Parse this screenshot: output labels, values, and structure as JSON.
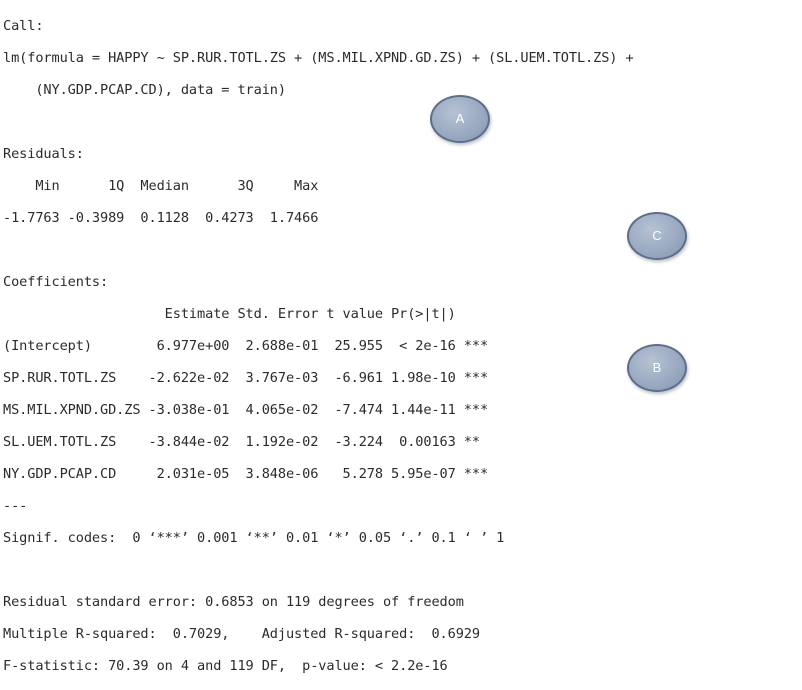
{
  "call_block": {
    "header": "Call:",
    "formula_line1": "lm(formula = HAPPY ~ SP.RUR.TOTL.ZS + (MS.MIL.XPND.GD.ZS) + (SL.UEM.TOTL.ZS) +",
    "formula_line2": "    (NY.GDP.PCAP.CD), data = train)"
  },
  "residuals": {
    "header": "Residuals:",
    "labels": "    Min      1Q  Median      3Q     Max ",
    "values": "-1.7763 -0.3989  0.1128  0.4273  1.7466 "
  },
  "coefficients": {
    "header": "Coefficients:",
    "column_header": "                    Estimate Std. Error t value Pr(>|t|)    ",
    "rows": [
      "(Intercept)        6.977e+00  2.688e-01  25.955  < 2e-16 ***",
      "SP.RUR.TOTL.ZS    -2.622e-02  3.767e-03  -6.961 1.98e-10 ***",
      "MS.MIL.XPND.GD.ZS -3.038e-01  4.065e-02  -7.474 1.44e-11 ***",
      "SL.UEM.TOTL.ZS    -3.844e-02  1.192e-02  -3.224  0.00163 ** ",
      "NY.GDP.PCAP.CD     2.031e-05  3.848e-06   5.278 5.95e-07 ***"
    ],
    "separator": "---",
    "signif_codes": "Signif. codes:  0 ‘***’ 0.001 ‘**’ 0.01 ‘*’ 0.05 ‘.’ 0.1 ‘ ’ 1"
  },
  "summary": {
    "residual_se": "Residual standard error: 0.6853 on 119 degrees of freedom",
    "r_squared": "Multiple R-squared:  0.7029,\tAdjusted R-squared:  0.6929 ",
    "f_statistic": "F-statistic: 70.39 on 4 and 119 DF,  p-value: < 2.2e-16"
  },
  "annotations": {
    "a": "A",
    "b": "B",
    "c": "C"
  },
  "colors": {
    "badge_fill": "#98a8c0",
    "badge_border": "#5b6e8c",
    "text": "#2b2b2b"
  }
}
